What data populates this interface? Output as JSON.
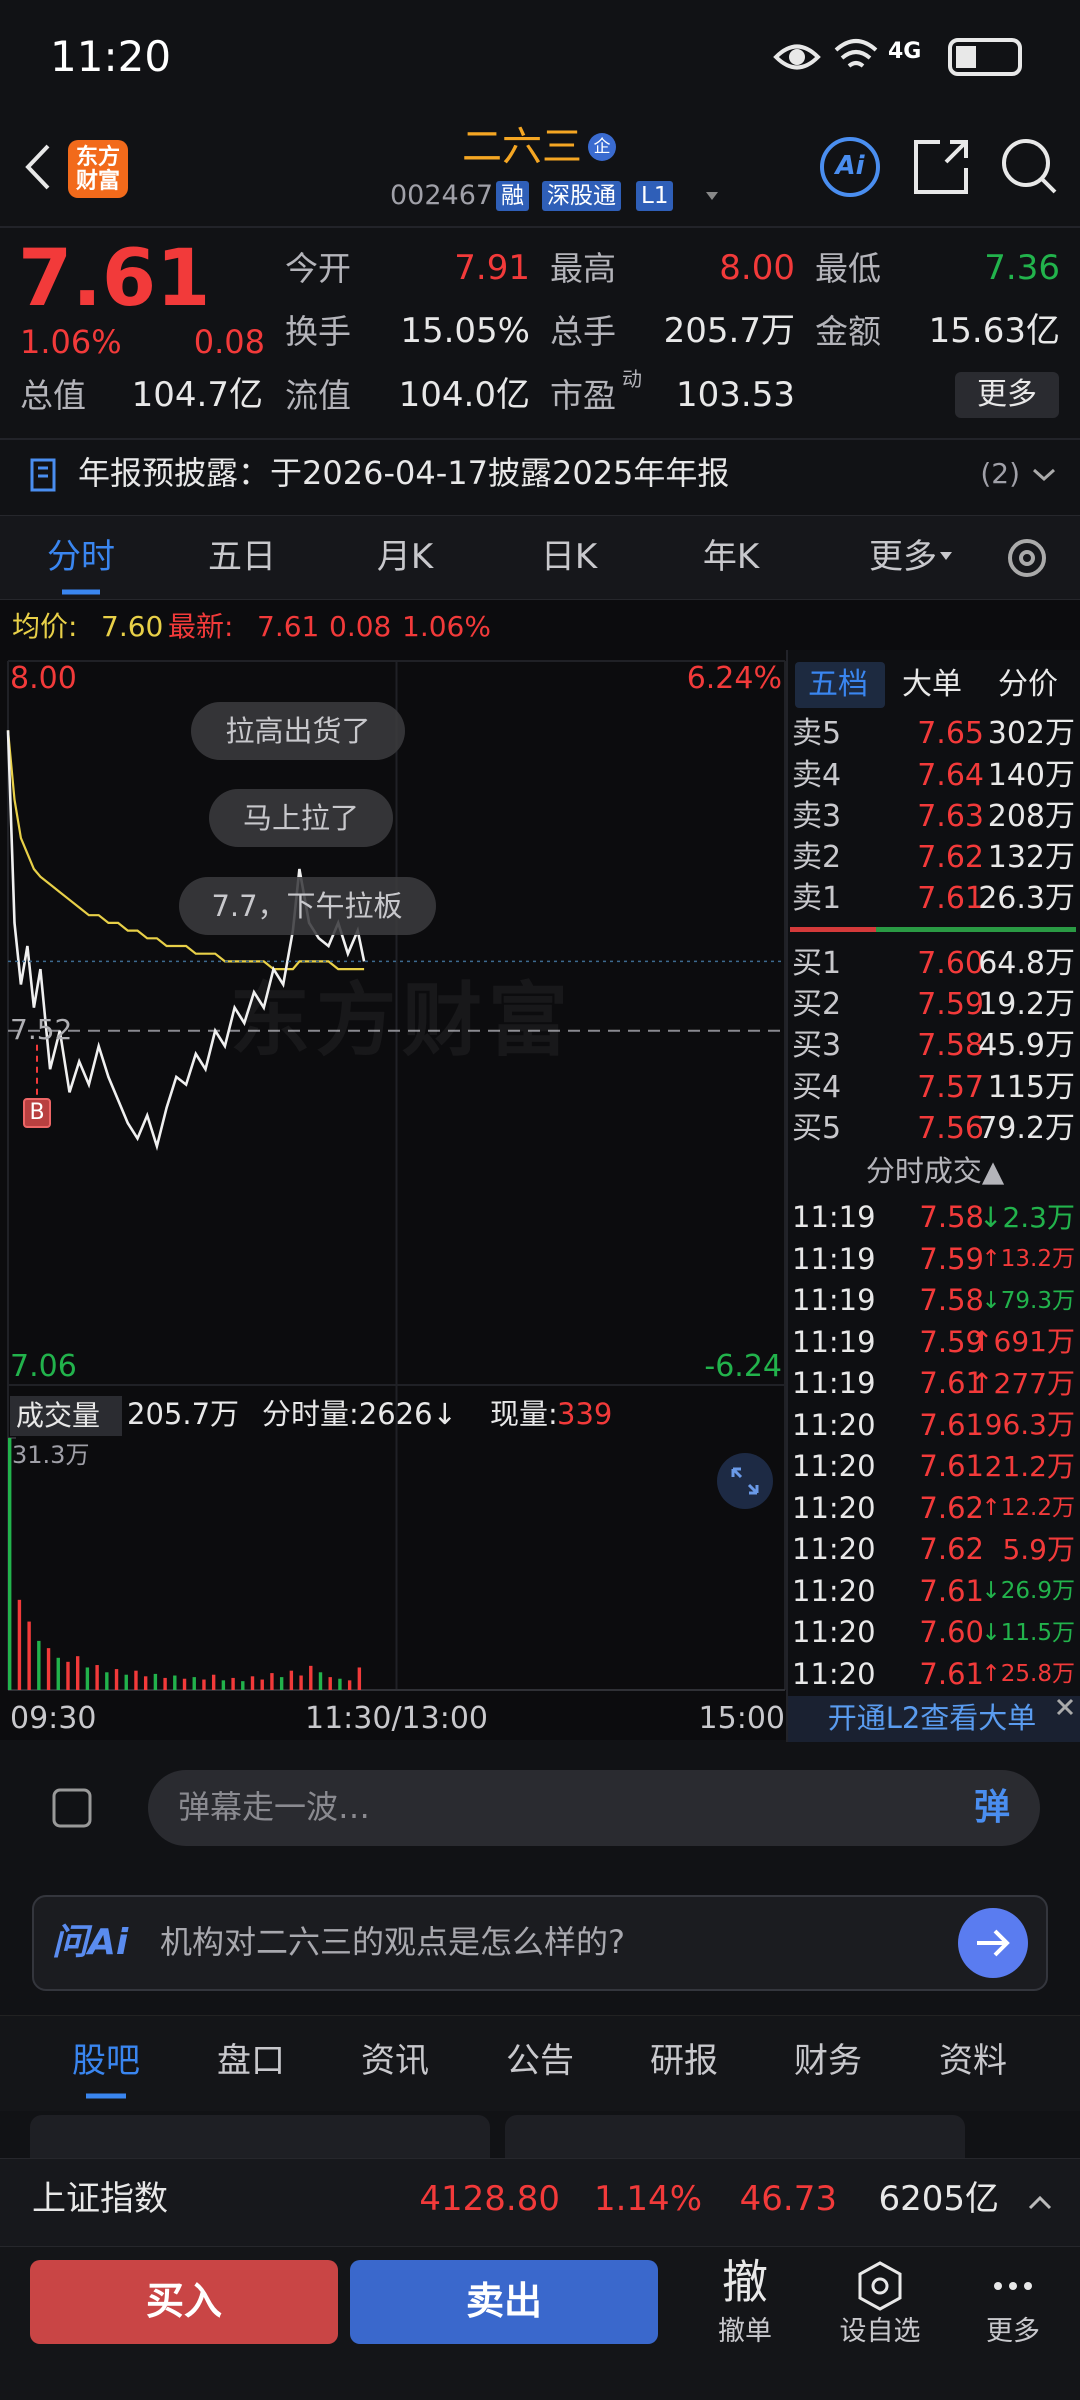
{
  "status_bar": {
    "time": "11:20",
    "network": "4G"
  },
  "header": {
    "logo": [
      "东方",
      "财富"
    ],
    "title": "二六三",
    "badge": "企",
    "code": "002467",
    "tags": [
      "融",
      "深股通",
      "L1"
    ],
    "ai": "Ai"
  },
  "quote": {
    "price": "7.61",
    "change_pct": "1.06%",
    "change": "0.08",
    "rows": [
      [
        {
          "label": "今开",
          "value": "7.91",
          "color": "#f23a3a"
        },
        {
          "label": "最高",
          "value": "8.00",
          "color": "#f23a3a"
        },
        {
          "label": "最低",
          "value": "7.36",
          "color": "#22b34c"
        }
      ],
      [
        {
          "label": "换手",
          "value": "15.05%",
          "color": "#e8e8e8"
        },
        {
          "label": "总手",
          "value": "205.7万",
          "color": "#e8e8e8"
        },
        {
          "label": "金额",
          "value": "15.63亿",
          "color": "#e8e8e8"
        }
      ],
      [
        {
          "label": "总值",
          "value": "104.7亿",
          "color": "#e8e8e8"
        },
        {
          "label": "流值",
          "value": "104.0亿",
          "color": "#e8e8e8"
        },
        {
          "label": "市盈",
          "sup": "动",
          "value": "103.53",
          "color": "#e8e8e8"
        }
      ]
    ],
    "more": "更多"
  },
  "notice": {
    "text": "年报预披露：于2026-04-17披露2025年年报",
    "count": "(2)"
  },
  "tabs": [
    "分时",
    "五日",
    "月K",
    "日K",
    "年K",
    "更多"
  ],
  "chart_data": [
    {
      "type": "line",
      "legend_values": [
        "7.60",
        "7.61",
        "0.08",
        "1.06%"
      ],
      "x": [
        0,
        2,
        4,
        6,
        8,
        10,
        13,
        16,
        19,
        22,
        25,
        28,
        31,
        34,
        37,
        40,
        43,
        46,
        49,
        52,
        55,
        58,
        61,
        64,
        67,
        70,
        73,
        76,
        79,
        82,
        85,
        88,
        90,
        93,
        96,
        99,
        102,
        105,
        108,
        110
      ],
      "series": [
        {
          "name": "最新:",
          "color": "#f0f0f0",
          "values": [
            7.91,
            7.66,
            7.58,
            7.63,
            7.55,
            7.6,
            7.47,
            7.52,
            7.44,
            7.48,
            7.45,
            7.5,
            7.46,
            7.43,
            7.4,
            7.38,
            7.41,
            7.37,
            7.42,
            7.46,
            7.45,
            7.49,
            7.47,
            7.52,
            7.5,
            7.55,
            7.53,
            7.57,
            7.55,
            7.6,
            7.58,
            7.65,
            7.73,
            7.66,
            7.64,
            7.63,
            7.66,
            7.62,
            7.65,
            7.61
          ]
        },
        {
          "name": "均价:",
          "color": "#e8d048",
          "values": [
            7.91,
            7.82,
            7.77,
            7.75,
            7.73,
            7.72,
            7.71,
            7.7,
            7.69,
            7.68,
            7.67,
            7.67,
            7.66,
            7.66,
            7.65,
            7.65,
            7.64,
            7.64,
            7.63,
            7.63,
            7.63,
            7.62,
            7.62,
            7.62,
            7.61,
            7.61,
            7.61,
            7.61,
            7.61,
            7.6,
            7.6,
            7.6,
            7.61,
            7.61,
            7.61,
            7.61,
            7.6,
            7.6,
            7.6,
            7.6
          ]
        }
      ],
      "xlim": [
        0,
        240
      ],
      "xticks": [
        {
          "value": 0,
          "label": "09:30"
        },
        {
          "value": 120,
          "label": "11:30/13:00"
        },
        {
          "value": 240,
          "label": "15:00"
        }
      ],
      "ylim": [
        7.06,
        8.0
      ],
      "yticks": [
        {
          "value": 8,
          "label": "8.00"
        },
        7.06
      ],
      "y2lim": [
        -6.24,
        6.24
      ],
      "y2ticks": [
        {
          "value": 6.24,
          "label": "6.24%"
        },
        -6.24
      ],
      "reference": 7.52,
      "marker": "B",
      "watermark": "东方财富",
      "annotations": [
        "拉高出货了",
        "马上拉了",
        "7.7，下午拉板"
      ]
    },
    {
      "type": "bar",
      "legend": {
        "label": "成交量",
        "total": "205.7万",
        "minute": "分时量:2626↓",
        "current_label": "现量:",
        "current": "339"
      },
      "x": [
        0,
        3,
        6,
        9,
        12,
        15,
        18,
        21,
        24,
        27,
        30,
        33,
        36,
        39,
        42,
        45,
        48,
        51,
        54,
        57,
        60,
        63,
        66,
        69,
        72,
        75,
        78,
        81,
        84,
        87,
        90,
        93,
        96,
        99,
        102,
        105,
        108
      ],
      "values": [
        31.3,
        11.2,
        8.5,
        6.1,
        5.2,
        4.0,
        3.5,
        4.2,
        2.8,
        3.1,
        2.2,
        2.6,
        1.9,
        2.4,
        1.7,
        2.0,
        1.5,
        1.8,
        1.4,
        1.6,
        1.3,
        1.9,
        1.2,
        1.5,
        1.1,
        1.7,
        1.3,
        2.1,
        1.6,
        2.4,
        1.8,
        3.0,
        2.2,
        1.6,
        1.4,
        1.2,
        2.8
      ],
      "colors": [
        "#22b34c",
        "#f23a3a",
        "#f23a3a",
        "#22b34c",
        "#f23a3a",
        "#22b34c",
        "#f23a3a",
        "#f23a3a",
        "#22b34c",
        "#f23a3a",
        "#22b34c",
        "#f23a3a",
        "#22b34c",
        "#f23a3a",
        "#f23a3a",
        "#22b34c",
        "#f23a3a",
        "#22b34c",
        "#f23a3a",
        "#22b34c",
        "#f23a3a",
        "#f23a3a",
        "#22b34c",
        "#f23a3a",
        "#22b34c",
        "#f23a3a",
        "#f23a3a",
        "#f23a3a",
        "#22b34c",
        "#f23a3a",
        "#f23a3a",
        "#f23a3a",
        "#22b34c",
        "#f23a3a",
        "#22b34c",
        "#f23a3a",
        "#f23a3a"
      ],
      "xlim": [
        0,
        240
      ],
      "ylim": [
        0,
        31.3
      ],
      "yticks": [
        {
          "value": 31.3,
          "label": "31.3万"
        }
      ]
    }
  ],
  "order_book": {
    "tabs": [
      "五档",
      "大单",
      "分价"
    ],
    "asks": [
      {
        "label": "卖5",
        "price": "7.65",
        "volume": "302万"
      },
      {
        "label": "卖4",
        "price": "7.64",
        "volume": "140万"
      },
      {
        "label": "卖3",
        "price": "7.63",
        "volume": "208万"
      },
      {
        "label": "卖2",
        "price": "7.62",
        "volume": "132万"
      },
      {
        "label": "卖1",
        "price": "7.61",
        "volume": "26.3万"
      }
    ],
    "bids": [
      {
        "label": "买1",
        "price": "7.60",
        "volume": "64.8万"
      },
      {
        "label": "买2",
        "price": "7.59",
        "volume": "19.2万"
      },
      {
        "label": "买3",
        "price": "7.58",
        "volume": "45.9万"
      },
      {
        "label": "买4",
        "price": "7.57",
        "volume": "115万"
      },
      {
        "label": "买5",
        "price": "7.56",
        "volume": "79.2万"
      }
    ],
    "trades_title": "分时成交▲",
    "trades": [
      {
        "time": "11:19",
        "price": "7.58",
        "volume": "↓2.3万"
      },
      {
        "time": "11:19",
        "price": "7.59",
        "volume": "↑13.2万"
      },
      {
        "time": "11:19",
        "price": "7.58",
        "volume": "↓79.3万"
      },
      {
        "time": "11:19",
        "price": "7.59",
        "volume": "↑691万"
      },
      {
        "time": "11:19",
        "price": "7.61",
        "volume": "↑277万"
      },
      {
        "time": "11:20",
        "price": "7.61",
        "volume": "96.3万"
      },
      {
        "time": "11:20",
        "price": "7.61",
        "volume": "21.2万"
      },
      {
        "time": "11:20",
        "price": "7.62",
        "volume": "↑12.2万"
      },
      {
        "time": "11:20",
        "price": "7.62",
        "volume": "5.9万"
      },
      {
        "time": "11:20",
        "price": "7.61",
        "volume": "↓26.9万"
      },
      {
        "time": "11:20",
        "price": "7.60",
        "volume": "↓11.5万"
      },
      {
        "time": "11:20",
        "price": "7.61",
        "volume": "↑25.8万"
      }
    ],
    "l2": "开通L2查看大单"
  },
  "danmu": {
    "placeholder": "弹幕走一波…",
    "button": "弹"
  },
  "ask_ai": {
    "brand": "问Ai",
    "placeholder": "机构对二六三的观点是怎么样的?"
  },
  "section_tabs": [
    "股吧",
    "盘口",
    "资讯",
    "公告",
    "研报",
    "财务",
    "资料"
  ],
  "index_bar": {
    "name": "上证指数",
    "value": "4128.80",
    "pct": "1.14%",
    "change": "46.73",
    "amount": "6205亿"
  },
  "bottom": {
    "buy": "买入",
    "sell": "卖出",
    "actions": [
      {
        "icon": "撤",
        "label": "撤单"
      },
      {
        "label": "设自选"
      },
      {
        "label": "更多"
      }
    ]
  }
}
